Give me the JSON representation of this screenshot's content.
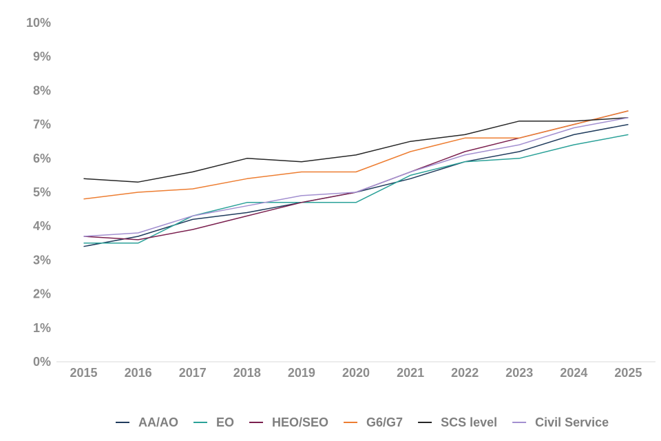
{
  "chart_data": {
    "type": "line",
    "title": "",
    "xlabel": "",
    "ylabel": "",
    "x": [
      "2015",
      "2016",
      "2017",
      "2018",
      "2019",
      "2020",
      "2021",
      "2022",
      "2023",
      "2024",
      "2025"
    ],
    "y_ticks": [
      "0%",
      "1%",
      "2%",
      "3%",
      "4%",
      "5%",
      "6%",
      "7%",
      "8%",
      "9%",
      "10%"
    ],
    "ylim": [
      0,
      10
    ],
    "grid": false,
    "legend_position": "bottom",
    "series": [
      {
        "name": "AA/AO",
        "color": "#1f3b5c",
        "values": [
          3.4,
          3.7,
          4.2,
          4.4,
          4.7,
          5.0,
          5.4,
          5.9,
          6.2,
          6.7,
          7.0
        ]
      },
      {
        "name": "EO",
        "color": "#2aa198",
        "values": [
          3.5,
          3.5,
          4.3,
          4.7,
          4.7,
          4.7,
          5.5,
          5.9,
          6.0,
          6.4,
          6.7
        ]
      },
      {
        "name": "HEO/SEO",
        "color": "#7a1f4e",
        "values": [
          3.7,
          3.6,
          3.9,
          4.3,
          4.7,
          5.0,
          5.6,
          6.2,
          6.6,
          7.0,
          7.4
        ]
      },
      {
        "name": "G6/G7",
        "color": "#ed7d31",
        "values": [
          4.8,
          5.0,
          5.1,
          5.4,
          5.6,
          5.6,
          6.2,
          6.6,
          6.6,
          7.0,
          7.4
        ]
      },
      {
        "name": "SCS level",
        "color": "#262626",
        "values": [
          5.4,
          5.3,
          5.6,
          6.0,
          5.9,
          6.1,
          6.5,
          6.7,
          7.1,
          7.1,
          7.2
        ]
      },
      {
        "name": "Civil Service",
        "color": "#a28fd0",
        "values": [
          3.7,
          3.8,
          4.3,
          4.6,
          4.9,
          5.0,
          5.6,
          6.1,
          6.4,
          6.9,
          7.2
        ]
      }
    ]
  }
}
